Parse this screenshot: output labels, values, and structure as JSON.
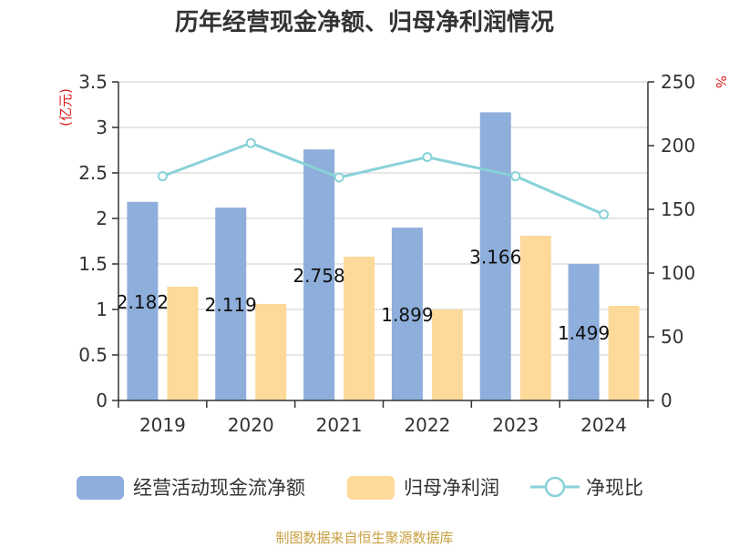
{
  "chart_data": {
    "type": "bar",
    "title": "历年经营现金净额、归母净利润情况",
    "categories": [
      "2019",
      "2020",
      "2021",
      "2022",
      "2023",
      "2024"
    ],
    "series": [
      {
        "name": "经营活动现金流净额",
        "type": "bar",
        "axis": "left",
        "color": "#8eaedb",
        "values": [
          2.182,
          2.119,
          2.758,
          1.899,
          3.166,
          1.499
        ],
        "labels": [
          "2.182",
          "2.119",
          "2.758",
          "1.899",
          "3.166",
          "1.499"
        ]
      },
      {
        "name": "归母净利润",
        "type": "bar",
        "axis": "left",
        "color": "#fdd99a",
        "values": [
          1.25,
          1.06,
          1.58,
          1.0,
          1.81,
          1.04
        ]
      },
      {
        "name": "净现比",
        "type": "line",
        "axis": "right",
        "color": "#88d2d8",
        "values": [
          176,
          202,
          175,
          191,
          176,
          146
        ]
      }
    ],
    "y_left": {
      "unit": "(亿元)",
      "min": 0,
      "max": 3.5,
      "ticks": [
        "0",
        "0.5",
        "1",
        "1.5",
        "2",
        "2.5",
        "3",
        "3.5"
      ]
    },
    "y_right": {
      "unit": "%",
      "min": 0,
      "max": 250,
      "ticks": [
        "0",
        "50",
        "100",
        "150",
        "200",
        "250"
      ]
    },
    "grid": true,
    "legend_position": "bottom"
  },
  "footer": {
    "source": "制图数据来自恒生聚源数据库"
  }
}
